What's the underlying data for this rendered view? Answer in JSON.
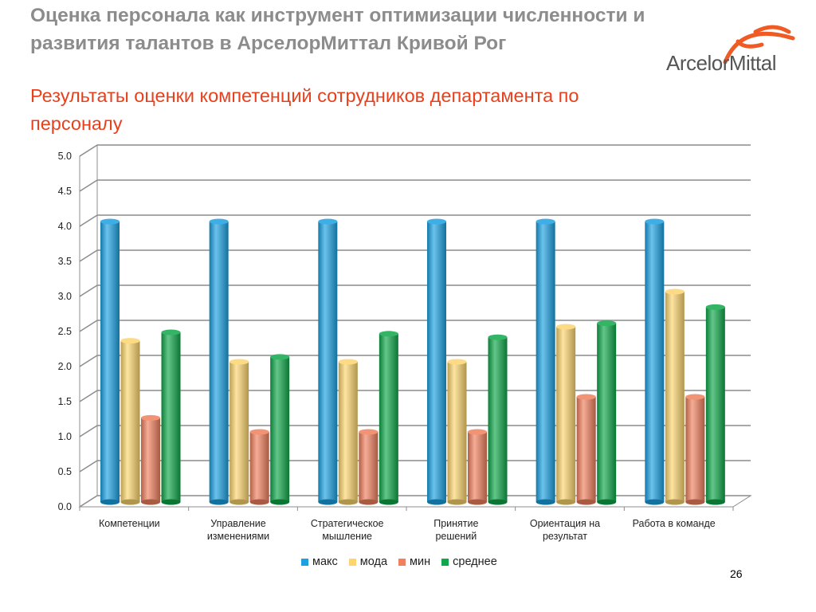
{
  "title": {
    "line1": "Оценка персонала как инструмент оптимизации численности и",
    "line2": "развития талантов в АрселорМиттал Кривой Рог"
  },
  "subtitle": {
    "line1": "Результаты оценки компетенций сотрудников департамента по",
    "line2": "персоналу"
  },
  "logo": {
    "text": "ArcelorMittal"
  },
  "page_number": "26",
  "colors": {
    "title": "#8c8c8c",
    "subtitle": "#e8401c",
    "logo_accent": "#f05a24"
  },
  "chart_data": {
    "type": "bar",
    "categories": [
      [
        "Компетенции"
      ],
      [
        "Управление",
        "изменениями"
      ],
      [
        "Стратегическое",
        "мышление"
      ],
      [
        "Принятие",
        "решений"
      ],
      [
        "Ориентация на",
        "результат"
      ],
      [
        "Работа в команде"
      ]
    ],
    "series": [
      {
        "name": "макс",
        "color": "#1ba1e2",
        "values": [
          4.0,
          4.0,
          4.0,
          4.0,
          4.0,
          4.0
        ]
      },
      {
        "name": "мода",
        "color": "#fcd56e",
        "values": [
          2.3,
          2.0,
          2.0,
          2.0,
          2.5,
          3.0
        ]
      },
      {
        "name": "мин",
        "color": "#f0805e",
        "values": [
          1.2,
          1.0,
          1.0,
          1.0,
          1.5,
          1.5
        ]
      },
      {
        "name": "среднее",
        "color": "#0fa84a",
        "values": [
          2.42,
          2.07,
          2.4,
          2.35,
          2.55,
          2.78
        ]
      }
    ],
    "ylim": [
      0,
      5
    ],
    "yticks": [
      "0.0",
      "0.5",
      "1.0",
      "1.5",
      "2.0",
      "2.5",
      "3.0",
      "3.5",
      "4.0",
      "4.5",
      "5.0"
    ],
    "grid": true,
    "legend_position": "bottom"
  }
}
